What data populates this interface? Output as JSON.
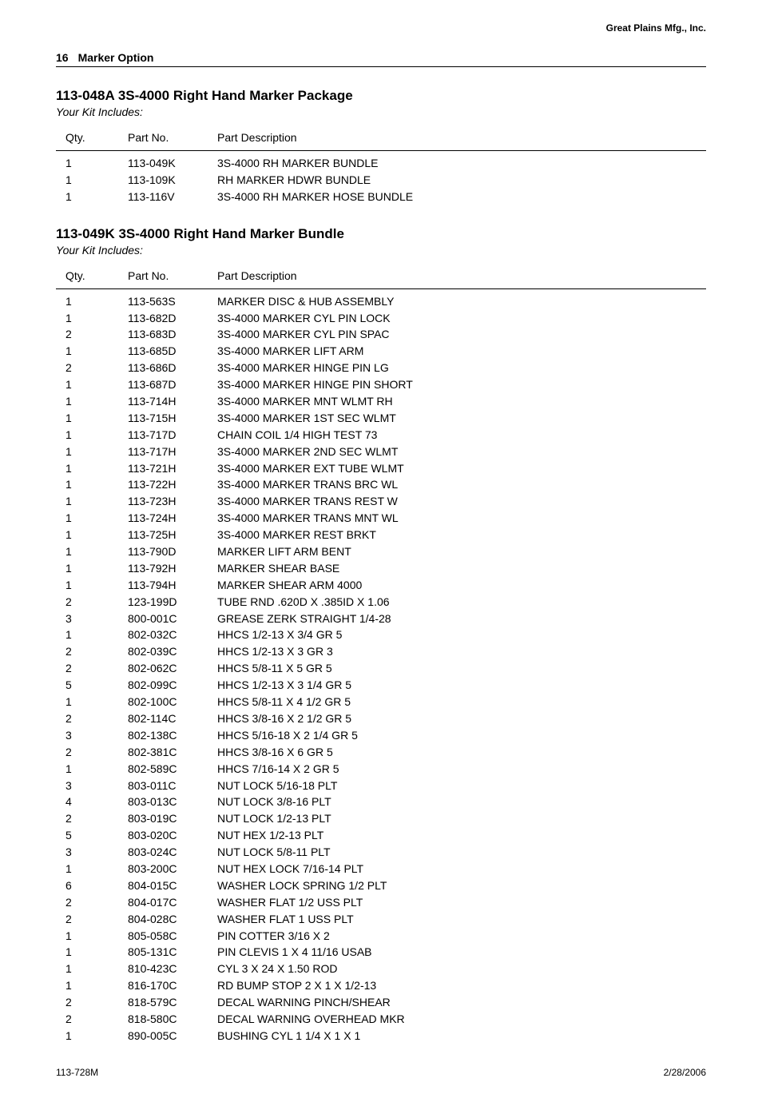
{
  "company": "Great Plains Mfg., Inc.",
  "page_number": "16",
  "section_name": "Marker Option",
  "footer_left": "113-728M",
  "footer_right": "2/28/2006",
  "labels": {
    "kit_includes": "Your Kit Includes:",
    "qty": "Qty.",
    "part_no": "Part No.",
    "part_desc": "Part Description"
  },
  "block1": {
    "title": "113-048A 3S-4000 Right Hand Marker Package",
    "rows": [
      {
        "qty": "1",
        "part": "113-049K",
        "desc": "3S-4000 RH MARKER BUNDLE"
      },
      {
        "qty": "1",
        "part": "113-109K",
        "desc": "RH MARKER HDWR BUNDLE"
      },
      {
        "qty": "1",
        "part": "113-116V",
        "desc": "3S-4000 RH MARKER HOSE BUNDLE"
      }
    ]
  },
  "block2": {
    "title": "113-049K 3S-4000 Right Hand Marker Bundle",
    "rows": [
      {
        "qty": "1",
        "part": "113-563S",
        "desc": "MARKER DISC & HUB ASSEMBLY"
      },
      {
        "qty": "1",
        "part": "113-682D",
        "desc": "3S-4000 MARKER CYL PIN LOCK"
      },
      {
        "qty": "2",
        "part": "113-683D",
        "desc": "3S-4000 MARKER CYL PIN SPAC"
      },
      {
        "qty": "1",
        "part": "113-685D",
        "desc": "3S-4000 MARKER LIFT ARM"
      },
      {
        "qty": "2",
        "part": "113-686D",
        "desc": "3S-4000 MARKER HINGE PIN LG"
      },
      {
        "qty": "1",
        "part": "113-687D",
        "desc": "3S-4000 MARKER HINGE PIN SHORT"
      },
      {
        "qty": "1",
        "part": "113-714H",
        "desc": "3S-4000 MARKER MNT WLMT RH"
      },
      {
        "qty": "1",
        "part": "113-715H",
        "desc": "3S-4000 MARKER 1ST SEC WLMT"
      },
      {
        "qty": "1",
        "part": "113-717D",
        "desc": "CHAIN COIL 1/4 HIGH TEST 73"
      },
      {
        "qty": "1",
        "part": "113-717H",
        "desc": "3S-4000 MARKER 2ND SEC WLMT"
      },
      {
        "qty": "1",
        "part": "113-721H",
        "desc": "3S-4000 MARKER EXT TUBE WLMT"
      },
      {
        "qty": "1",
        "part": "113-722H",
        "desc": "3S-4000 MARKER TRANS BRC WL"
      },
      {
        "qty": "1",
        "part": "113-723H",
        "desc": "3S-4000 MARKER TRANS REST W"
      },
      {
        "qty": "1",
        "part": "113-724H",
        "desc": "3S-4000 MARKER TRANS MNT WL"
      },
      {
        "qty": "1",
        "part": "113-725H",
        "desc": "3S-4000 MARKER REST BRKT"
      },
      {
        "qty": "1",
        "part": "113-790D",
        "desc": "MARKER LIFT ARM BENT"
      },
      {
        "qty": "1",
        "part": "113-792H",
        "desc": "MARKER SHEAR BASE"
      },
      {
        "qty": "1",
        "part": "113-794H",
        "desc": "MARKER SHEAR ARM 4000"
      },
      {
        "qty": "2",
        "part": "123-199D",
        "desc": "TUBE RND .620D X .385ID X 1.06"
      },
      {
        "qty": "3",
        "part": "800-001C",
        "desc": "GREASE ZERK STRAIGHT 1/4-28"
      },
      {
        "qty": "1",
        "part": "802-032C",
        "desc": "HHCS 1/2-13 X 3/4 GR 5"
      },
      {
        "qty": "2",
        "part": "802-039C",
        "desc": "HHCS 1/2-13 X 3 GR 3"
      },
      {
        "qty": "2",
        "part": "802-062C",
        "desc": "HHCS 5/8-11 X 5 GR 5"
      },
      {
        "qty": "5",
        "part": "802-099C",
        "desc": "HHCS 1/2-13 X 3 1/4 GR 5"
      },
      {
        "qty": "1",
        "part": "802-100C",
        "desc": "HHCS 5/8-11 X 4 1/2 GR 5"
      },
      {
        "qty": "2",
        "part": "802-114C",
        "desc": "HHCS 3/8-16 X 2 1/2 GR 5"
      },
      {
        "qty": "3",
        "part": "802-138C",
        "desc": "HHCS 5/16-18 X 2 1/4 GR 5"
      },
      {
        "qty": "2",
        "part": "802-381C",
        "desc": "HHCS 3/8-16 X 6 GR 5"
      },
      {
        "qty": "1",
        "part": "802-589C",
        "desc": "HHCS 7/16-14 X 2 GR 5"
      },
      {
        "qty": "3",
        "part": "803-011C",
        "desc": "NUT LOCK 5/16-18 PLT"
      },
      {
        "qty": "4",
        "part": "803-013C",
        "desc": "NUT LOCK 3/8-16 PLT"
      },
      {
        "qty": "2",
        "part": "803-019C",
        "desc": "NUT LOCK 1/2-13 PLT"
      },
      {
        "qty": "5",
        "part": "803-020C",
        "desc": "NUT HEX 1/2-13 PLT"
      },
      {
        "qty": "3",
        "part": "803-024C",
        "desc": "NUT LOCK 5/8-11 PLT"
      },
      {
        "qty": "1",
        "part": "803-200C",
        "desc": "NUT HEX LOCK 7/16-14 PLT"
      },
      {
        "qty": "6",
        "part": "804-015C",
        "desc": "WASHER LOCK SPRING 1/2 PLT"
      },
      {
        "qty": "2",
        "part": "804-017C",
        "desc": "WASHER FLAT 1/2 USS PLT"
      },
      {
        "qty": "2",
        "part": "804-028C",
        "desc": "WASHER FLAT 1 USS PLT"
      },
      {
        "qty": "1",
        "part": "805-058C",
        "desc": "PIN COTTER 3/16 X 2"
      },
      {
        "qty": "1",
        "part": "805-131C",
        "desc": "PIN CLEVIS 1 X 4 11/16 USAB"
      },
      {
        "qty": "1",
        "part": "810-423C",
        "desc": "CYL 3 X 24 X 1.50 ROD"
      },
      {
        "qty": "1",
        "part": "816-170C",
        "desc": "RD BUMP STOP 2 X 1 X 1/2-13"
      },
      {
        "qty": "2",
        "part": "818-579C",
        "desc": "DECAL WARNING PINCH/SHEAR"
      },
      {
        "qty": "2",
        "part": "818-580C",
        "desc": "DECAL WARNING OVERHEAD MKR"
      },
      {
        "qty": "1",
        "part": "890-005C",
        "desc": "BUSHING CYL 1 1/4 X 1 X 1"
      }
    ]
  }
}
